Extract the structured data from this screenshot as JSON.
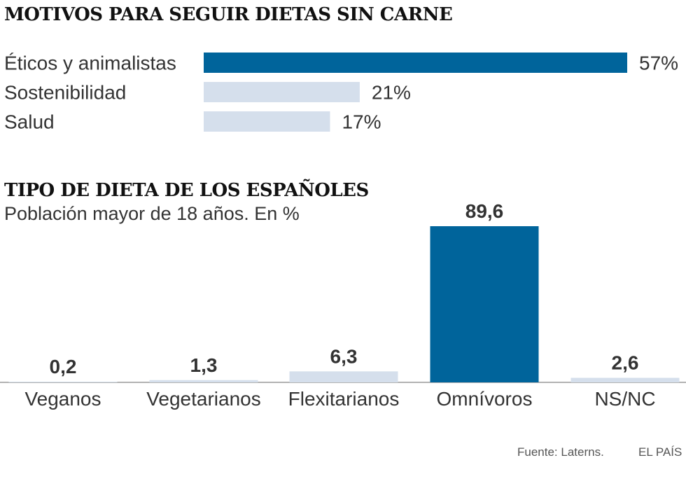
{
  "colors": {
    "highlight": "#00649b",
    "muted": "#d5dfec",
    "text": "#333333",
    "axis": "#999999"
  },
  "chart_data": [
    {
      "type": "bar",
      "orientation": "horizontal",
      "title": "MOTIVOS PARA SEGUIR DIETAS SIN CARNE",
      "categories": [
        "Éticos y animalistas",
        "Sostenibilidad",
        "Salud"
      ],
      "values": [
        57,
        21,
        17
      ],
      "value_labels": [
        "57%",
        "21%",
        "17%"
      ],
      "highlighted": [
        true,
        false,
        false
      ],
      "xlim": [
        0,
        57
      ]
    },
    {
      "type": "bar",
      "orientation": "vertical",
      "title": "TIPO DE DIETA DE LOS ESPAÑOLES",
      "subtitle": "Población mayor de 18 años. En %",
      "categories": [
        "Veganos",
        "Vegetarianos",
        "Flexitarianos",
        "Omnívoros",
        "NS/NC"
      ],
      "values": [
        0.2,
        1.3,
        6.3,
        89.6,
        2.6
      ],
      "value_labels": [
        "0,2",
        "1,3",
        "6,3",
        "89,6",
        "2,6"
      ],
      "highlighted": [
        false,
        false,
        false,
        true,
        false
      ],
      "ylim": [
        0,
        89.6
      ]
    }
  ],
  "footer": {
    "source": "Fuente: Laterns.",
    "publisher": "EL PAÍS"
  }
}
